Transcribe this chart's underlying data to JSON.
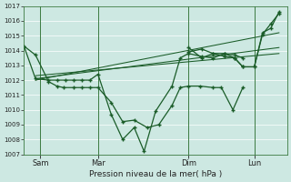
{
  "bg_color": "#cde8e2",
  "line_color": "#1a5c28",
  "grid_color": "#b8d8d2",
  "xlabel": "Pression niveau de la mer( hPa )",
  "ylim": [
    1007,
    1017
  ],
  "yticks": [
    1007,
    1008,
    1009,
    1010,
    1011,
    1012,
    1013,
    1014,
    1015,
    1016,
    1017
  ],
  "xlim": [
    0,
    16
  ],
  "day_labels": [
    "Sam",
    "Mar",
    "Dim",
    "Lun"
  ],
  "day_positions": [
    1,
    4.5,
    10,
    14
  ],
  "vline_positions": [
    1,
    4.5,
    10,
    14
  ],
  "line1_x": [
    0,
    0.7,
    1.5,
    2.0,
    2.4,
    3.0,
    3.5,
    4.0,
    4.5,
    5.3,
    6.0,
    6.7,
    7.5,
    8.2,
    9.0,
    9.5,
    10.0,
    10.7,
    11.5,
    12.0,
    12.7,
    13.3
  ],
  "line1_y": [
    1014.3,
    1013.7,
    1011.9,
    1011.6,
    1011.5,
    1011.5,
    1011.5,
    1011.5,
    1011.5,
    1010.5,
    1009.2,
    1009.3,
    1008.8,
    1009.0,
    1010.3,
    1011.5,
    1011.6,
    1011.6,
    1011.5,
    1011.5,
    1010.0,
    1011.5
  ],
  "line2_x": [
    0,
    0.7,
    1.5,
    2.0,
    2.5,
    3.0,
    3.5,
    4.0,
    4.5,
    5.3,
    6.0,
    6.7,
    7.3,
    8.0,
    9.0,
    9.5,
    10.0,
    10.8,
    11.5,
    12.2,
    12.8,
    13.3,
    14.0,
    14.5,
    15.0,
    15.5
  ],
  "line2_y": [
    1014.3,
    1012.1,
    1012.0,
    1012.0,
    1012.0,
    1012.0,
    1012.0,
    1012.0,
    1012.4,
    1009.7,
    1008.0,
    1008.8,
    1007.2,
    1009.9,
    1011.6,
    1013.5,
    1013.8,
    1013.6,
    1013.5,
    1013.8,
    1013.5,
    1012.9,
    1012.9,
    1015.1,
    1015.8,
    1016.5
  ],
  "trend1_x": [
    0.7,
    15.5
  ],
  "trend1_y": [
    1012.0,
    1015.2
  ],
  "trend2_x": [
    0.7,
    15.5
  ],
  "trend2_y": [
    1012.1,
    1014.2
  ],
  "trend3_x": [
    0.7,
    15.5
  ],
  "trend3_y": [
    1012.3,
    1013.8
  ],
  "line3_x": [
    10.0,
    10.8,
    11.5,
    12.2,
    12.8,
    13.3,
    14.0,
    14.5,
    15.0,
    15.5
  ],
  "line3_y": [
    1013.9,
    1014.1,
    1013.8,
    1013.6,
    1013.5,
    1012.9,
    1012.9,
    1015.2,
    1015.5,
    1016.6
  ],
  "line4_x": [
    10.0,
    10.8,
    11.5,
    12.2,
    12.8,
    13.3
  ],
  "line4_y": [
    1014.2,
    1013.5,
    1013.8,
    1013.8,
    1013.7,
    1013.5
  ]
}
